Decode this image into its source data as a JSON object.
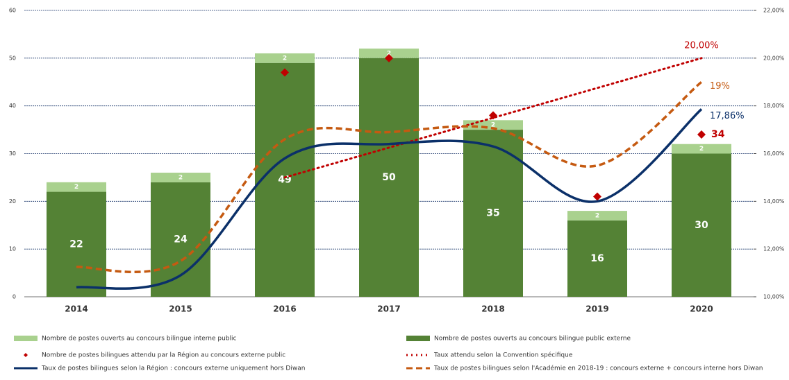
{
  "chart_data": {
    "type": "bar",
    "categories": [
      "2014",
      "2015",
      "2016",
      "2017",
      "2018",
      "2019",
      "2020"
    ],
    "ylim": [
      0,
      60
    ],
    "yticks": [
      0,
      10,
      20,
      30,
      40,
      50,
      60
    ],
    "y2lim": [
      10,
      22
    ],
    "y2ticks": [
      {
        "value": 10,
        "label": "10,00%"
      },
      {
        "value": 12,
        "label": "12,00%"
      },
      {
        "value": 14,
        "label": "14,00%"
      },
      {
        "value": 16,
        "label": "16,00%"
      },
      {
        "value": 18,
        "label": "18,00%"
      },
      {
        "value": 20,
        "label": "20,00%"
      },
      {
        "value": 22,
        "label": "22,00%"
      }
    ],
    "grid": true,
    "series": [
      {
        "name": "Nombre de postes ouverts au concours bilingue interne public",
        "mark": "bar",
        "color": "#a9d18e",
        "values": [
          2,
          2,
          2,
          2,
          2,
          2,
          2
        ]
      },
      {
        "name": "Nombre de postes ouverts au concours bilingue public externe",
        "mark": "bar",
        "color": "#548235",
        "values": [
          22,
          24,
          49,
          50,
          35,
          16,
          30
        ]
      },
      {
        "name": "Nombre de postes bilingues attendu par la Région au concours externe public",
        "mark": "diamond",
        "color": "#c00000",
        "values": [
          null,
          null,
          47,
          50,
          38,
          21,
          34
        ],
        "value_labels": [
          null,
          null,
          null,
          null,
          null,
          null,
          "34"
        ]
      },
      {
        "name": "Taux attendu selon la Convention spécifique",
        "mark": "line",
        "dash": "dotted",
        "axis": "y2",
        "color": "#c00000",
        "values": [
          null,
          null,
          15,
          16.25,
          17.5,
          18.75,
          20
        ],
        "value_labels": [
          null,
          null,
          null,
          null,
          null,
          null,
          "20,00%"
        ]
      },
      {
        "name": "Taux de postes bilingues selon la Région : concours externe uniquement hors Diwan",
        "mark": "line",
        "dash": "solid",
        "axis": "y2",
        "color": "#0b3069",
        "values": [
          10.4,
          10.9,
          15.8,
          16.4,
          16.3,
          14.0,
          17.86
        ],
        "value_labels": [
          null,
          null,
          null,
          null,
          null,
          null,
          "17,86%"
        ]
      },
      {
        "name": "Taux de postes bilingues selon l'Académie en 2018-19 : concours externe + concours interne hors Diwan",
        "mark": "line",
        "dash": "dashed",
        "axis": "y2",
        "color": "#c55a11",
        "values": [
          11.25,
          11.5,
          16.6,
          16.9,
          17.06,
          15.5,
          19
        ],
        "value_labels": [
          null,
          null,
          null,
          null,
          null,
          null,
          "19%"
        ]
      }
    ]
  }
}
